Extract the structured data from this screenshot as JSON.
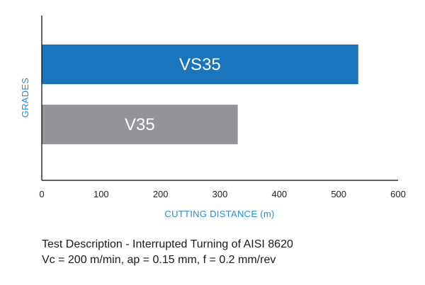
{
  "chart_data": {
    "type": "bar",
    "orientation": "horizontal",
    "categories": [
      "VS35",
      "V35"
    ],
    "values": [
      533,
      330
    ],
    "bar_colors": [
      "#1b75bc",
      "#939598"
    ],
    "xlabel": "CUTTING DISTANCE (m)",
    "ylabel": "GRADES",
    "xlim": [
      0,
      600
    ],
    "xticks": [
      0,
      100,
      200,
      300,
      400,
      500,
      600
    ],
    "axis_title_color": "#2a8ccf",
    "grid": false,
    "legend": "none"
  },
  "description": {
    "line1": "Test Description - Interrupted Turning of AISI 8620",
    "line2": "Vc = 200 m/min, ap = 0.15 mm, f = 0.2 mm/rev"
  }
}
